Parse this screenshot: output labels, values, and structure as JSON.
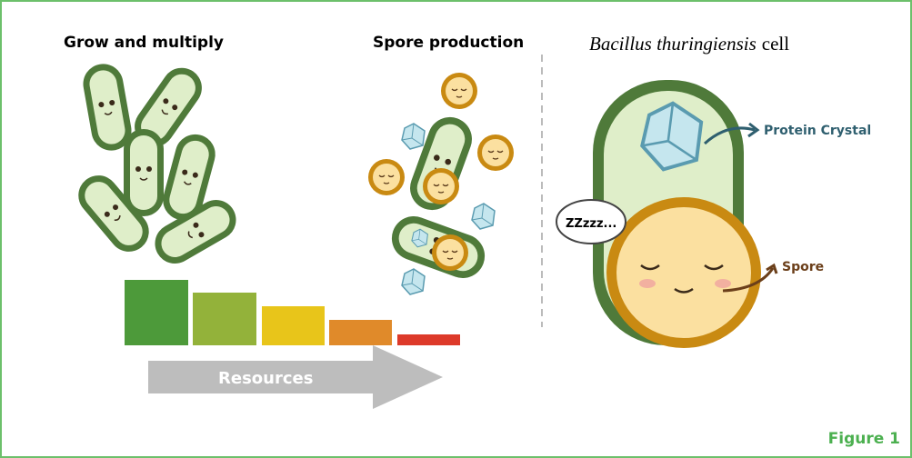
{
  "left_label": "Grow and multiply",
  "middle_label": "Spore production",
  "right_title": {
    "species": "Bacillus thuringiensis",
    "suffix": "cell"
  },
  "labels": {
    "crystal": "Protein Crystal",
    "spore": "Spore",
    "sleep": "ZZzzz..."
  },
  "arrow_label": "Resources",
  "figure": "Figure 1"
}
